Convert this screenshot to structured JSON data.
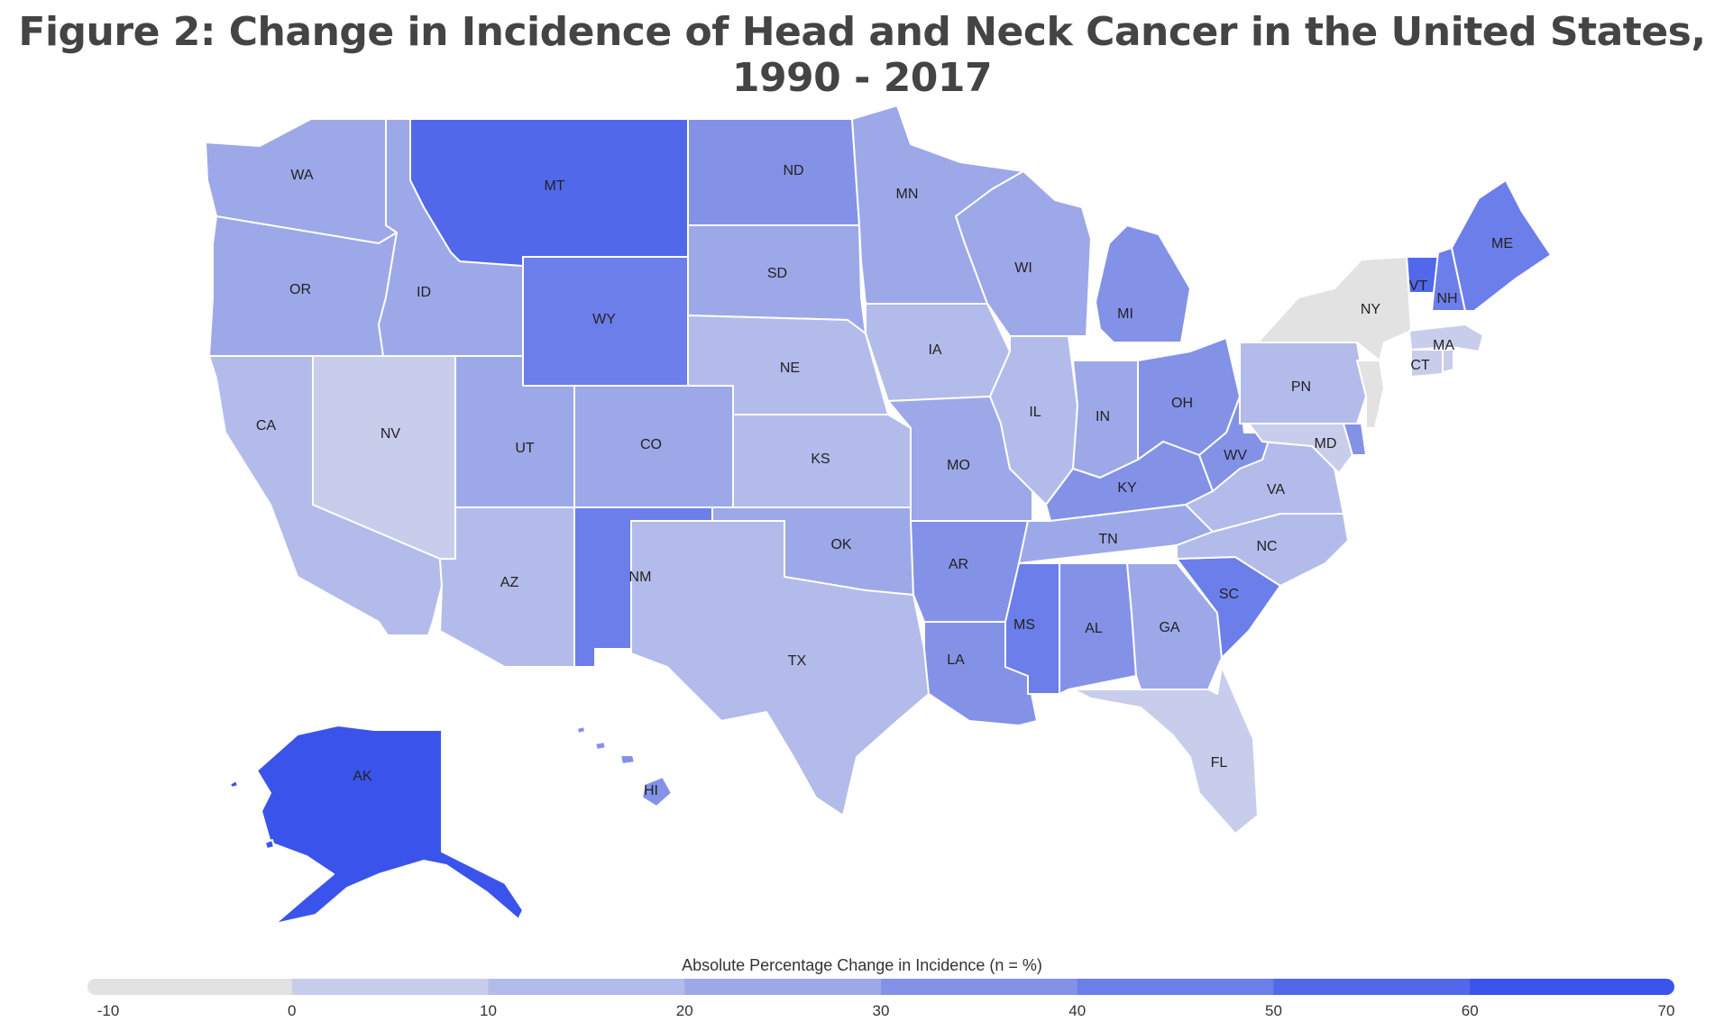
{
  "title": "Figure 2: Change in Incidence of Head and Neck Cancer in the United States, 1990 - 2017",
  "legend": {
    "title": "Absolute Percentage Change in Incidence (n = %)",
    "ticks": [
      "-10",
      "0",
      "10",
      "20",
      "30",
      "40",
      "50",
      "60",
      "70"
    ],
    "colors": [
      "#e2e2e2",
      "#c9cdec",
      "#b3bbea",
      "#9ca8e8",
      "#8392e7",
      "#6c7ee9",
      "#5268ea",
      "#3a54eb"
    ]
  },
  "chart_data": {
    "type": "choropleth",
    "title": "Figure 2: Change in Incidence of Head and Neck Cancer in the United States, 1990 - 2017",
    "legend_label": "Absolute Percentage Change in Incidence (n = %)",
    "scale_range": [
      -10,
      70
    ],
    "bins": [
      -10,
      0,
      10,
      20,
      30,
      40,
      50,
      60,
      70
    ],
    "states": [
      {
        "code": "WA",
        "bin": 3
      },
      {
        "code": "OR",
        "bin": 3
      },
      {
        "code": "CA",
        "bin": 2
      },
      {
        "code": "NV",
        "bin": 1
      },
      {
        "code": "ID",
        "bin": 3
      },
      {
        "code": "MT",
        "bin": 6
      },
      {
        "code": "WY",
        "bin": 5
      },
      {
        "code": "UT",
        "bin": 3
      },
      {
        "code": "AZ",
        "bin": 2
      },
      {
        "code": "CO",
        "bin": 3
      },
      {
        "code": "NM",
        "bin": 5
      },
      {
        "code": "ND",
        "bin": 4
      },
      {
        "code": "SD",
        "bin": 3
      },
      {
        "code": "NE",
        "bin": 2
      },
      {
        "code": "KS",
        "bin": 2
      },
      {
        "code": "OK",
        "bin": 3
      },
      {
        "code": "TX",
        "bin": 2
      },
      {
        "code": "MN",
        "bin": 3
      },
      {
        "code": "IA",
        "bin": 2
      },
      {
        "code": "MO",
        "bin": 3
      },
      {
        "code": "AR",
        "bin": 4
      },
      {
        "code": "LA",
        "bin": 4
      },
      {
        "code": "WI",
        "bin": 3
      },
      {
        "code": "IL",
        "bin": 2
      },
      {
        "code": "MI",
        "bin": 4
      },
      {
        "code": "IN",
        "bin": 3
      },
      {
        "code": "OH",
        "bin": 4
      },
      {
        "code": "KY",
        "bin": 4
      },
      {
        "code": "TN",
        "bin": 3
      },
      {
        "code": "MS",
        "bin": 5
      },
      {
        "code": "AL",
        "bin": 4
      },
      {
        "code": "GA",
        "bin": 3
      },
      {
        "code": "FL",
        "bin": 1
      },
      {
        "code": "SC",
        "bin": 5
      },
      {
        "code": "NC",
        "bin": 2
      },
      {
        "code": "VA",
        "bin": 2
      },
      {
        "code": "WV",
        "bin": 4
      },
      {
        "code": "MD",
        "bin": 1
      },
      {
        "code": "PN",
        "bin": 2
      },
      {
        "code": "NY",
        "bin": 0
      },
      {
        "code": "VT",
        "bin": 6
      },
      {
        "code": "NH",
        "bin": 5
      },
      {
        "code": "ME",
        "bin": 5
      },
      {
        "code": "MA",
        "bin": 1
      },
      {
        "code": "CT",
        "bin": 1
      },
      {
        "code": "RI",
        "bin": 1
      },
      {
        "code": "NJ",
        "bin": 0
      },
      {
        "code": "DE",
        "bin": 4
      },
      {
        "code": "AK",
        "bin": 7
      },
      {
        "code": "HI",
        "bin": 4
      }
    ],
    "labels": [
      "WA",
      "OR",
      "CA",
      "NV",
      "ID",
      "MT",
      "WY",
      "UT",
      "AZ",
      "CO",
      "NM",
      "ND",
      "SD",
      "NE",
      "KS",
      "OK",
      "TX",
      "MN",
      "IA",
      "MO",
      "AR",
      "LA",
      "WI",
      "IL",
      "MI",
      "IN",
      "OH",
      "KY",
      "TN",
      "MS",
      "AL",
      "GA",
      "FL",
      "SC",
      "NC",
      "VA",
      "WV",
      "MD",
      "PN",
      "NY",
      "VT",
      "NH",
      "ME",
      "MA",
      "CT",
      "AK",
      "HI"
    ]
  }
}
